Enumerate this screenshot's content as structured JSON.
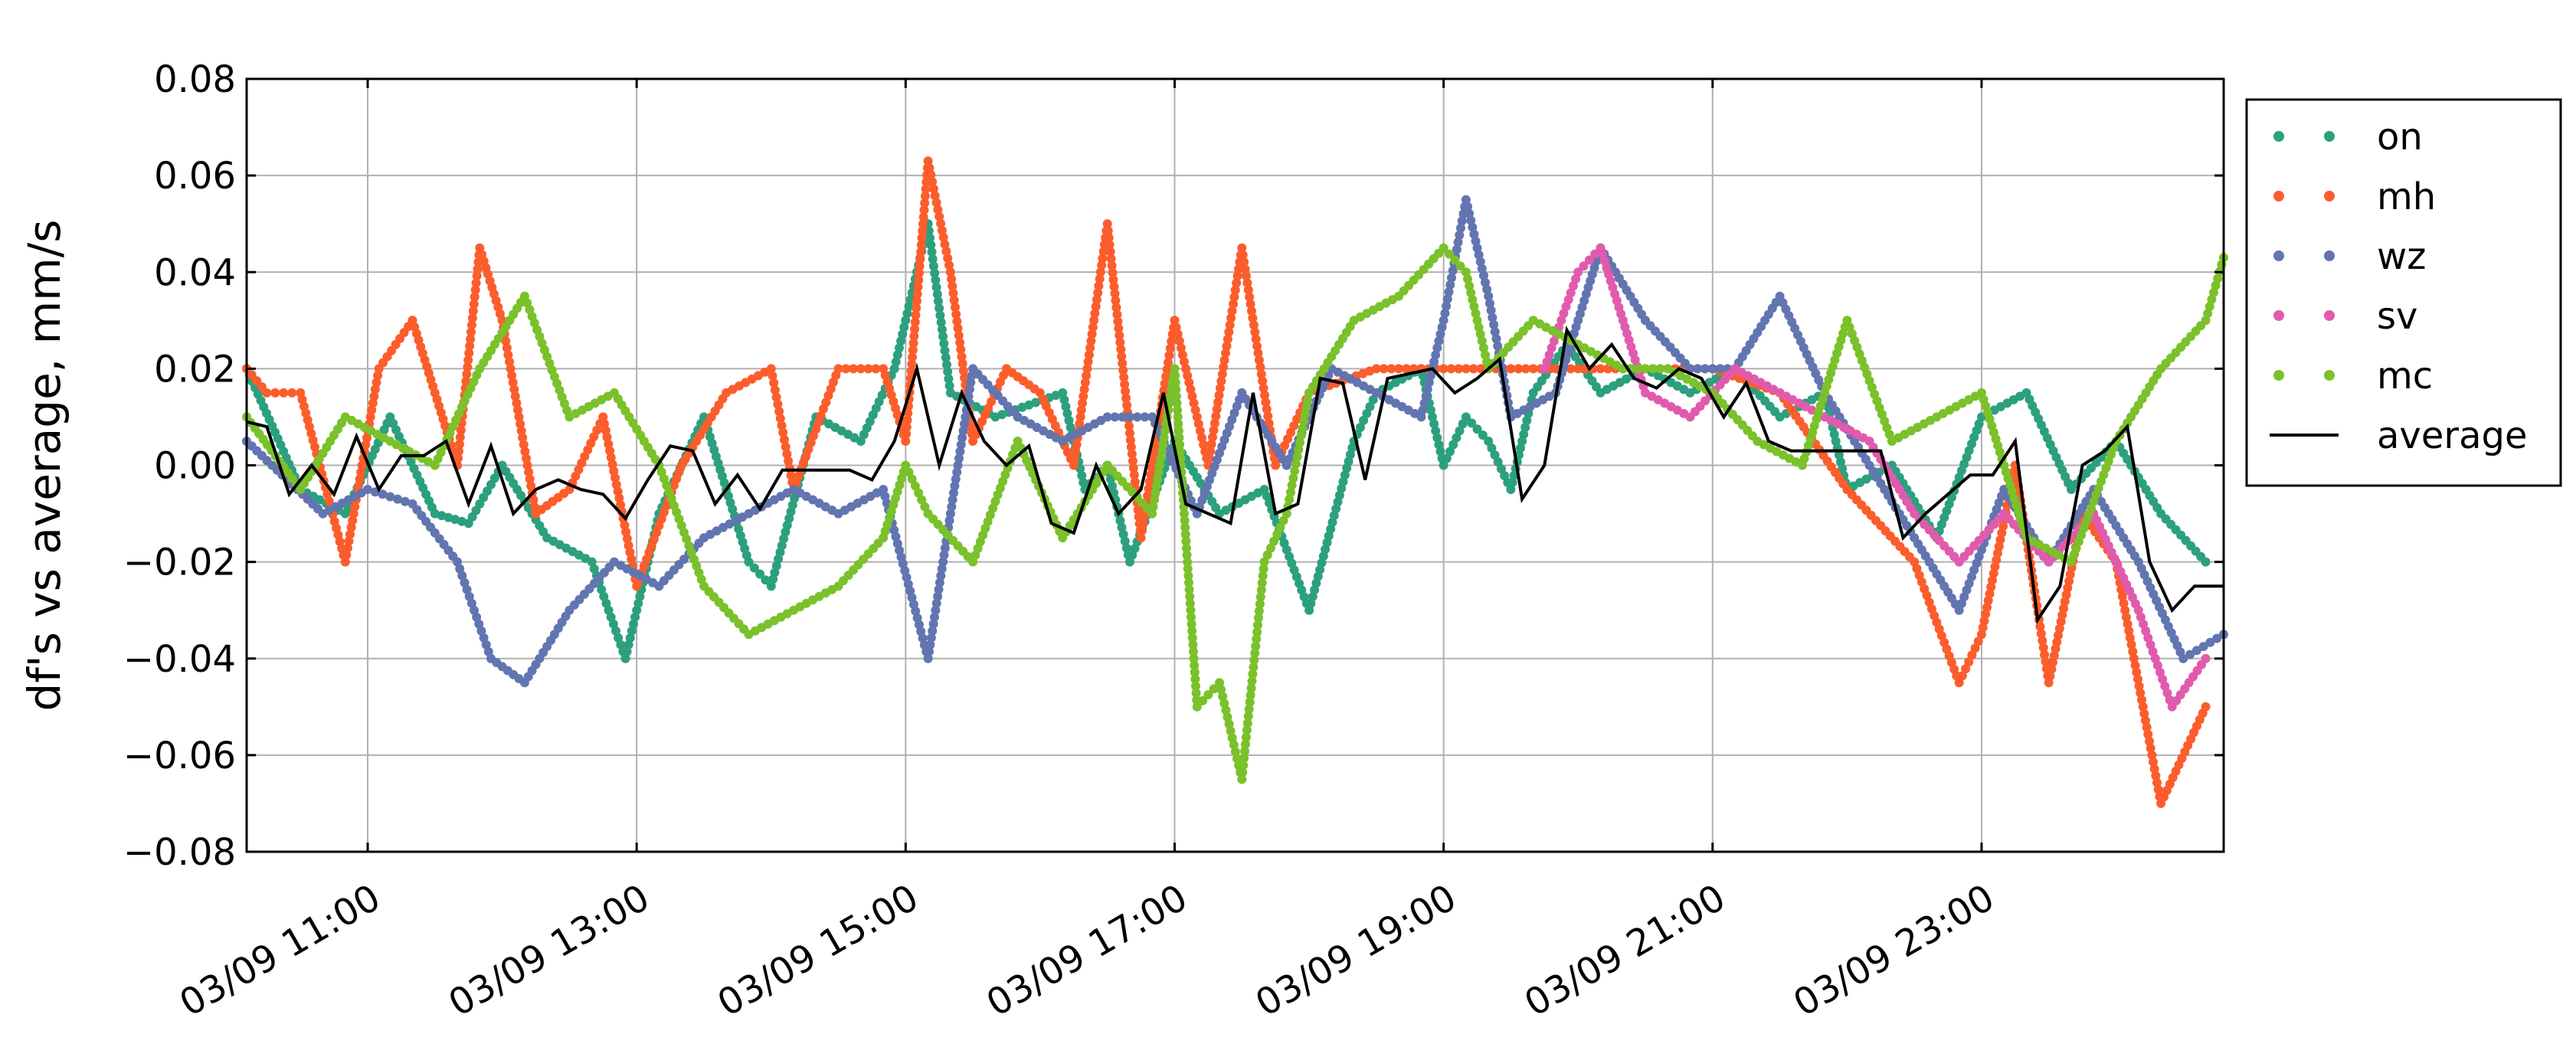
{
  "chart_data": {
    "type": "scatter",
    "title": "",
    "xlabel": "",
    "ylabel": "df's vs average, mm/s",
    "xlim": [
      "03/09 10:06",
      "03/09 24:48"
    ],
    "ylim": [
      -0.08,
      0.08
    ],
    "x_tick_labels": [
      "03/09 11:00",
      "03/09 13:00",
      "03/09 15:00",
      "03/09 17:00",
      "03/09 19:00",
      "03/09 21:00",
      "03/09 23:00"
    ],
    "y_tick_labels": [
      "0.08",
      "0.06",
      "0.04",
      "0.02",
      "0.00",
      "−0.02",
      "−0.04",
      "−0.06",
      "−0.08"
    ],
    "grid": true,
    "legend_position": "outside right, top",
    "series": [
      {
        "name": "on",
        "color": "#2ca07e",
        "style": "dots",
        "x": [
          "10:06",
          "10:30",
          "10:50",
          "11:10",
          "11:30",
          "11:45",
          "12:00",
          "12:20",
          "12:40",
          "12:55",
          "13:00",
          "13:10",
          "13:30",
          "13:50",
          "14:00",
          "14:20",
          "14:40",
          "14:55",
          "15:10",
          "15:20",
          "15:40",
          "16:10",
          "16:20",
          "16:30",
          "16:40",
          "17:00",
          "17:20",
          "17:40",
          "18:00",
          "18:20",
          "18:30",
          "18:50",
          "19:00",
          "19:10",
          "19:20",
          "19:30",
          "19:40",
          "19:55",
          "20:10",
          "20:30",
          "20:50",
          "21:10",
          "21:30",
          "21:50",
          "22:00",
          "22:20",
          "22:40",
          "23:00",
          "23:20",
          "23:40",
          "24:00",
          "24:20",
          "24:40"
        ],
        "y": [
          0.02,
          -0.005,
          -0.01,
          0.01,
          -0.01,
          -0.012,
          0.0,
          -0.015,
          -0.02,
          -0.04,
          -0.03,
          -0.01,
          0.01,
          -0.02,
          -0.025,
          0.01,
          0.005,
          0.02,
          0.05,
          0.015,
          0.01,
          0.015,
          -0.005,
          0.0,
          -0.02,
          0.005,
          -0.01,
          -0.005,
          -0.03,
          0.005,
          0.015,
          0.02,
          0.0,
          0.01,
          0.005,
          -0.005,
          0.015,
          0.025,
          0.015,
          0.02,
          0.015,
          0.02,
          0.01,
          0.015,
          -0.005,
          0.0,
          -0.015,
          0.01,
          0.015,
          -0.005,
          0.005,
          -0.01,
          -0.02
        ]
      },
      {
        "name": "mh",
        "color": "#fc5d2c",
        "style": "dots",
        "x": [
          "10:06",
          "10:15",
          "10:30",
          "10:50",
          "11:05",
          "11:20",
          "11:40",
          "11:50",
          "12:00",
          "12:15",
          "12:30",
          "12:45",
          "13:00",
          "13:20",
          "13:40",
          "14:00",
          "14:10",
          "14:30",
          "14:50",
          "15:00",
          "15:10",
          "15:20",
          "15:30",
          "15:45",
          "16:00",
          "16:15",
          "16:30",
          "16:45",
          "17:00",
          "17:15",
          "17:30",
          "17:45",
          "18:00",
          "18:30",
          "19:00",
          "19:30",
          "20:00",
          "20:30",
          "21:00",
          "21:30",
          "22:00",
          "22:30",
          "22:50",
          "23:00",
          "23:15",
          "23:30",
          "23:45",
          "24:00",
          "24:20",
          "24:40"
        ],
        "y": [
          0.02,
          0.015,
          0.015,
          -0.02,
          0.02,
          0.03,
          0.0,
          0.045,
          0.03,
          -0.01,
          -0.005,
          0.01,
          -0.025,
          0.0,
          0.015,
          0.02,
          -0.005,
          0.02,
          0.02,
          0.005,
          0.063,
          0.04,
          0.005,
          0.02,
          0.015,
          0.0,
          0.05,
          -0.015,
          0.03,
          0.0,
          0.045,
          0.0,
          0.015,
          0.02,
          0.02,
          0.02,
          0.02,
          0.02,
          0.02,
          0.015,
          -0.005,
          -0.02,
          -0.045,
          -0.035,
          0.0,
          -0.045,
          -0.01,
          -0.02,
          -0.07,
          -0.05
        ]
      },
      {
        "name": "wz",
        "color": "#6275b0",
        "style": "dots",
        "x": [
          "10:06",
          "10:40",
          "11:00",
          "11:20",
          "11:40",
          "11:55",
          "12:10",
          "12:30",
          "12:50",
          "13:10",
          "13:30",
          "13:50",
          "14:10",
          "14:30",
          "14:50",
          "15:10",
          "15:30",
          "15:50",
          "16:10",
          "16:30",
          "16:50",
          "17:10",
          "17:30",
          "17:50",
          "18:10",
          "18:30",
          "18:50",
          "19:00",
          "19:10",
          "19:20",
          "19:30",
          "19:50",
          "20:10",
          "20:30",
          "20:50",
          "21:10",
          "21:30",
          "21:50",
          "22:10",
          "22:30",
          "22:50",
          "23:10",
          "23:30",
          "23:50",
          "24:10",
          "24:30",
          "24:48"
        ],
        "y": [
          0.005,
          -0.01,
          -0.005,
          -0.008,
          -0.02,
          -0.04,
          -0.045,
          -0.03,
          -0.02,
          -0.025,
          -0.015,
          -0.01,
          -0.005,
          -0.01,
          -0.005,
          -0.04,
          0.02,
          0.01,
          0.005,
          0.01,
          0.01,
          -0.01,
          0.015,
          0.0,
          0.02,
          0.015,
          0.01,
          0.03,
          0.055,
          0.035,
          0.01,
          0.015,
          0.045,
          0.03,
          0.02,
          0.02,
          0.035,
          0.015,
          0.0,
          -0.015,
          -0.03,
          -0.005,
          -0.02,
          -0.005,
          -0.02,
          -0.04,
          -0.035
        ]
      },
      {
        "name": "sv",
        "color": "#e05bad",
        "style": "dots",
        "x": [
          "19:45",
          "20:00",
          "20:10",
          "20:20",
          "20:30",
          "20:50",
          "21:10",
          "21:30",
          "21:50",
          "22:10",
          "22:30",
          "22:50",
          "23:10",
          "23:30",
          "23:50",
          "24:10",
          "24:25",
          "24:40"
        ],
        "y": [
          0.02,
          0.04,
          0.045,
          0.03,
          0.015,
          0.01,
          0.02,
          0.015,
          0.01,
          0.005,
          -0.01,
          -0.02,
          -0.01,
          -0.02,
          -0.01,
          -0.03,
          -0.05,
          -0.04
        ]
      },
      {
        "name": "mc",
        "color": "#7ac12b",
        "style": "dots",
        "x": [
          "10:06",
          "10:30",
          "10:50",
          "11:10",
          "11:30",
          "11:50",
          "12:10",
          "12:30",
          "12:50",
          "13:10",
          "13:30",
          "13:50",
          "14:10",
          "14:30",
          "14:50",
          "15:00",
          "15:10",
          "15:30",
          "15:50",
          "16:10",
          "16:30",
          "16:50",
          "17:00",
          "17:10",
          "17:20",
          "17:30",
          "17:40",
          "17:50",
          "18:00",
          "18:20",
          "18:40",
          "19:00",
          "19:10",
          "19:20",
          "19:40",
          "20:00",
          "20:20",
          "20:40",
          "21:00",
          "21:20",
          "21:40",
          "22:00",
          "22:20",
          "22:40",
          "23:00",
          "23:20",
          "23:40",
          "24:00",
          "24:20",
          "24:40",
          "24:48"
        ],
        "y": [
          0.01,
          -0.005,
          0.01,
          0.005,
          0.0,
          0.02,
          0.035,
          0.01,
          0.015,
          0.0,
          -0.025,
          -0.035,
          -0.03,
          -0.025,
          -0.015,
          0.0,
          -0.01,
          -0.02,
          0.005,
          -0.015,
          0.0,
          -0.01,
          0.02,
          -0.05,
          -0.045,
          -0.065,
          -0.02,
          -0.01,
          0.015,
          0.03,
          0.035,
          0.045,
          0.04,
          0.02,
          0.03,
          0.025,
          0.02,
          0.02,
          0.015,
          0.005,
          0.0,
          0.03,
          0.005,
          0.01,
          0.015,
          -0.015,
          -0.02,
          0.005,
          0.02,
          0.03,
          0.043
        ]
      },
      {
        "name": "average",
        "color": "#000000",
        "style": "line",
        "x": [
          "10:06",
          "10:15",
          "10:25",
          "10:35",
          "10:45",
          "10:55",
          "11:05",
          "11:15",
          "11:25",
          "11:35",
          "11:45",
          "11:55",
          "12:05",
          "12:15",
          "12:25",
          "12:35",
          "12:45",
          "12:55",
          "13:05",
          "13:15",
          "13:25",
          "13:35",
          "13:45",
          "13:55",
          "14:05",
          "14:15",
          "14:25",
          "14:35",
          "14:45",
          "14:55",
          "15:05",
          "15:15",
          "15:25",
          "15:35",
          "15:45",
          "15:55",
          "16:05",
          "16:15",
          "16:25",
          "16:35",
          "16:45",
          "16:55",
          "17:05",
          "17:15",
          "17:25",
          "17:35",
          "17:45",
          "17:55",
          "18:05",
          "18:15",
          "18:25",
          "18:35",
          "18:45",
          "18:55",
          "19:05",
          "19:15",
          "19:25",
          "19:35",
          "19:45",
          "19:55",
          "20:05",
          "20:15",
          "20:25",
          "20:35",
          "20:45",
          "20:55",
          "21:05",
          "21:15",
          "21:25",
          "21:35",
          "21:45",
          "21:55",
          "22:05",
          "22:15",
          "22:25",
          "22:35",
          "22:45",
          "22:55",
          "23:05",
          "23:15",
          "23:25",
          "23:35",
          "23:45",
          "23:55",
          "24:05",
          "24:15",
          "24:25",
          "24:35",
          "24:48"
        ],
        "y": [
          0.009,
          0.008,
          -0.006,
          0.0,
          -0.006,
          0.006,
          -0.005,
          0.002,
          0.002,
          0.005,
          -0.008,
          0.004,
          -0.01,
          -0.005,
          -0.003,
          -0.005,
          -0.006,
          -0.011,
          -0.003,
          0.004,
          0.003,
          -0.008,
          -0.002,
          -0.009,
          -0.001,
          -0.001,
          -0.001,
          -0.001,
          -0.003,
          0.005,
          0.02,
          0.0,
          0.015,
          0.005,
          0.0,
          0.004,
          -0.012,
          -0.014,
          0.0,
          -0.01,
          -0.005,
          0.015,
          -0.008,
          -0.01,
          -0.012,
          0.015,
          -0.01,
          -0.008,
          0.018,
          0.017,
          -0.003,
          0.018,
          0.019,
          0.02,
          0.015,
          0.018,
          0.022,
          -0.007,
          0.0,
          0.028,
          0.02,
          0.025,
          0.018,
          0.016,
          0.02,
          0.018,
          0.01,
          0.017,
          0.005,
          0.003,
          0.003,
          0.003,
          0.003,
          0.003,
          -0.015,
          -0.01,
          -0.006,
          -0.002,
          -0.002,
          0.005,
          -0.032,
          -0.025,
          0.0,
          0.003,
          0.008,
          -0.02,
          -0.03,
          -0.025,
          -0.025
        ]
      }
    ]
  }
}
